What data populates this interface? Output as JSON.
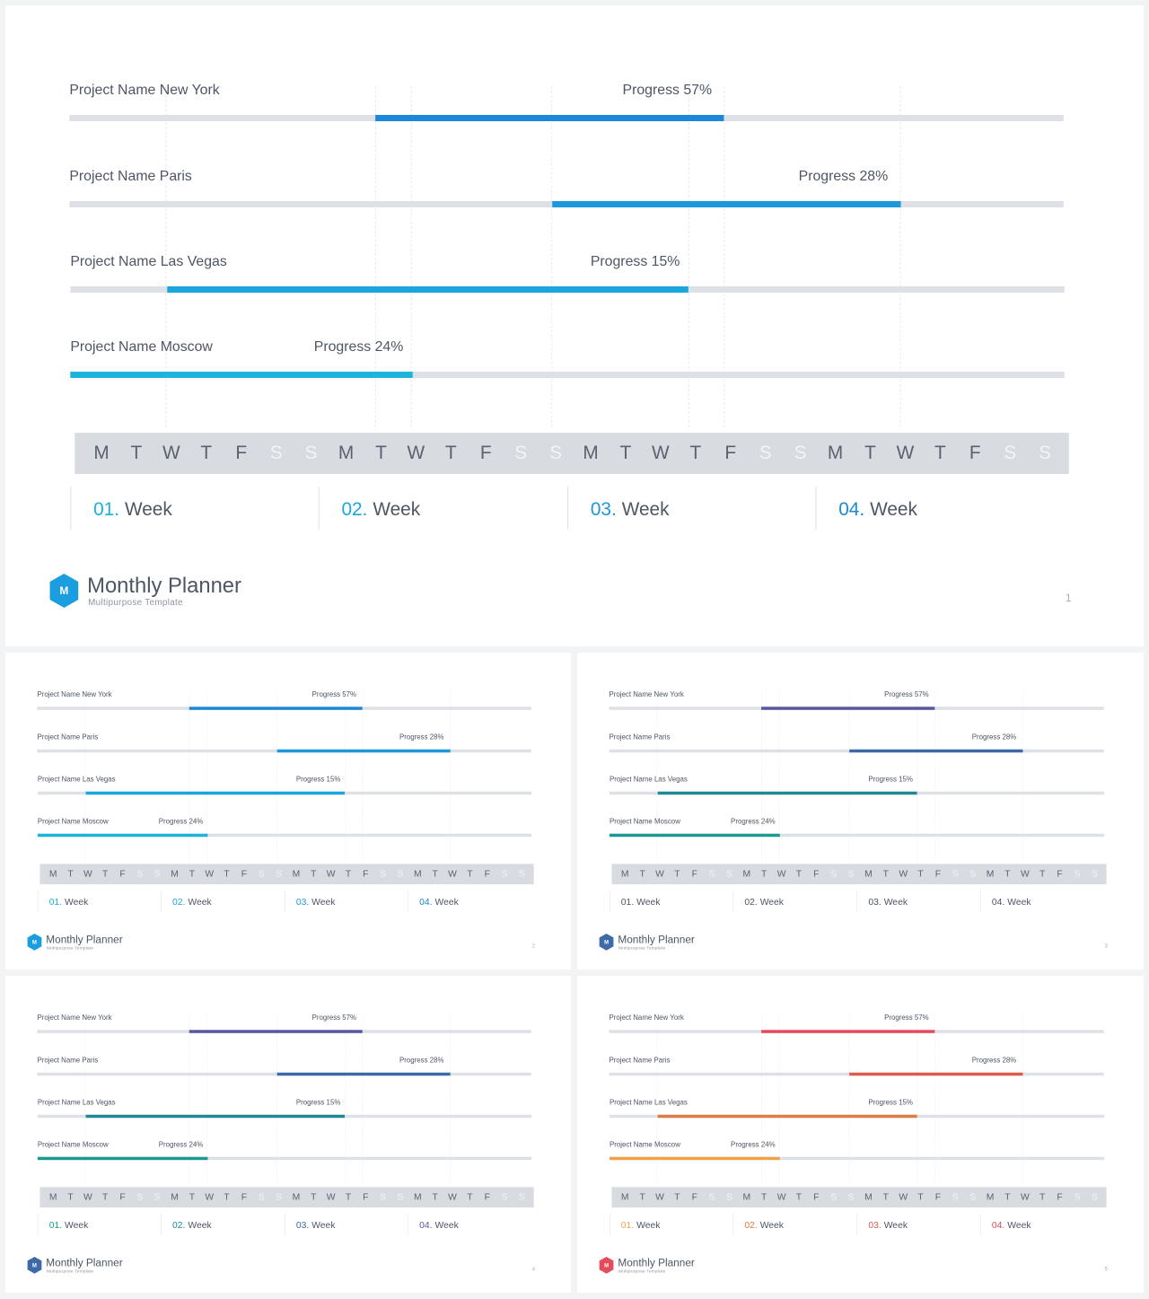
{
  "projects": [
    {
      "name": "Project Name New York",
      "progress_text": "Progress 57%"
    },
    {
      "name": "Project Name Paris",
      "progress_text": "Progress 28%"
    },
    {
      "name": "Project Name Las Vegas",
      "progress_text": "Progress 15%"
    },
    {
      "name": "Project Name Moscow",
      "progress_text": "Progress 24%"
    }
  ],
  "days": [
    "M",
    "T",
    "W",
    "T",
    "F",
    "S",
    "S",
    "M",
    "T",
    "W",
    "T",
    "F",
    "S",
    "S",
    "M",
    "T",
    "W",
    "T",
    "F",
    "S",
    "S",
    "M",
    "T",
    "W",
    "T",
    "F",
    "S",
    "S"
  ],
  "weeks": [
    {
      "num": "01.",
      "label": "Week"
    },
    {
      "num": "02.",
      "label": "Week"
    },
    {
      "num": "03.",
      "label": "Week"
    },
    {
      "num": "04.",
      "label": "Week"
    }
  ],
  "brand": {
    "logo_letter": "M",
    "title": "Monthly Planner",
    "subtitle": "Multipurpose  Template"
  },
  "slides": [
    {
      "page": "1",
      "logo_color": "#1a9ee0",
      "bar_colors": [
        "#1e88d8",
        "#1c98db",
        "#1aa6dc",
        "#1cb4da"
      ],
      "week_num_colors": [
        "#1ab0d8",
        "#1aa6dc",
        "#1c98db",
        "#1e88d8"
      ]
    },
    {
      "page": "2",
      "logo_color": "#1a9ee0",
      "bar_colors": [
        "#1e88d8",
        "#1c98db",
        "#1aa6dc",
        "#1cb4da"
      ],
      "week_num_colors": [
        "#1ab0d8",
        "#1aa6dc",
        "#1c98db",
        "#1e88d8"
      ]
    },
    {
      "page": "3",
      "logo_color": "#3e6aa8",
      "bar_colors": [
        "#5a57a0",
        "#3e6aa8",
        "#1d8a94",
        "#1c9990"
      ],
      "week_num_colors": [
        "#4d5664",
        "#4d5664",
        "#4d5664",
        "#4d5664"
      ]
    },
    {
      "page": "4",
      "logo_color": "#3e6aa8",
      "bar_colors": [
        "#5a57a0",
        "#3e6aa8",
        "#1d8a94",
        "#1c9990"
      ],
      "week_num_colors": [
        "#1c9990",
        "#1d8a94",
        "#3e6aa8",
        "#5a57a0"
      ]
    },
    {
      "page": "5",
      "logo_color": "#e54b5a",
      "bar_colors": [
        "#e54b5a",
        "#e0594f",
        "#e07a45",
        "#f0a24a"
      ],
      "week_num_colors": [
        "#f0a24a",
        "#e07a45",
        "#e0594f",
        "#e54b5a"
      ]
    }
  ]
}
